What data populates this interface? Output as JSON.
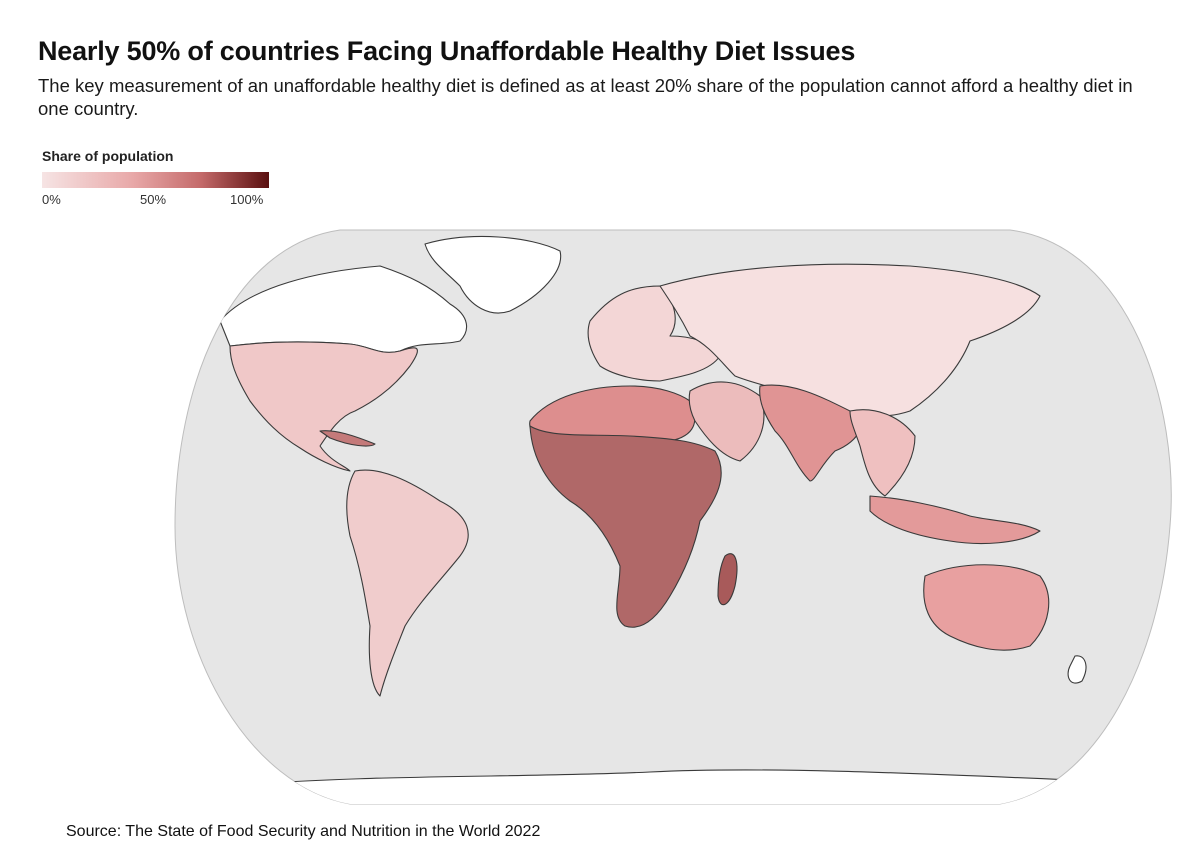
{
  "title": "Nearly 50% of countries Facing Unaffordable Healthy Diet Issues",
  "subtitle": "The key measurement of an unaffordable healthy diet is defined as at least 20% share of the population cannot afford a healthy diet in one country.",
  "legend": {
    "title": "Share of population",
    "ticks": [
      "0%",
      "50%",
      "100%"
    ],
    "colors": {
      "low": "#f6e4e4",
      "mid": "#e8a8a8",
      "high": "#5a0f0f"
    }
  },
  "map": {
    "projection": "robinson",
    "ocean_color": "#e6e6e6",
    "no_data_color": "#ffffff",
    "regions": [
      {
        "name": "North America",
        "share_level": "low"
      },
      {
        "name": "Greenland",
        "share_level": "no-data"
      },
      {
        "name": "South America",
        "share_level": "low"
      },
      {
        "name": "Europe",
        "share_level": "low"
      },
      {
        "name": "Russia and Central Asia",
        "share_level": "low"
      },
      {
        "name": "North Africa",
        "share_level": "medium"
      },
      {
        "name": "Sub-Saharan Africa",
        "share_level": "high"
      },
      {
        "name": "Madagascar",
        "share_level": "high"
      },
      {
        "name": "Middle East",
        "share_level": "low-medium"
      },
      {
        "name": "South Asia",
        "share_level": "medium"
      },
      {
        "name": "China",
        "share_level": "low"
      },
      {
        "name": "Southeast Asia",
        "share_level": "low-medium"
      },
      {
        "name": "Indonesia / PNG",
        "share_level": "medium"
      },
      {
        "name": "Australia",
        "share_level": "medium"
      },
      {
        "name": "Antarctica",
        "share_level": "no-data"
      }
    ]
  },
  "source": "Source: The State of Food Security and Nutrition in the World 2022"
}
